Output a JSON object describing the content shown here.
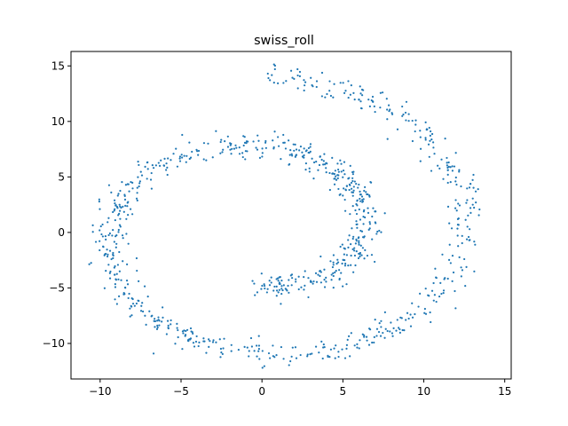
{
  "chart_data": {
    "type": "scatter",
    "title": "swiss_roll",
    "xlabel": "",
    "ylabel": "",
    "xlim": [
      -11.8,
      15.4
    ],
    "ylim": [
      -13.2,
      16.3
    ],
    "xticks": [
      -10,
      -5,
      0,
      5,
      10,
      15
    ],
    "yticks": [
      -10,
      -5,
      0,
      5,
      10,
      15
    ],
    "grid": false,
    "marker_color": "#1f77b4",
    "spiral": {
      "start_angle": 4.712,
      "end_angle": 14.137,
      "radius_per_radian": 1.0,
      "jitter": 0.55,
      "points": 1000
    }
  }
}
